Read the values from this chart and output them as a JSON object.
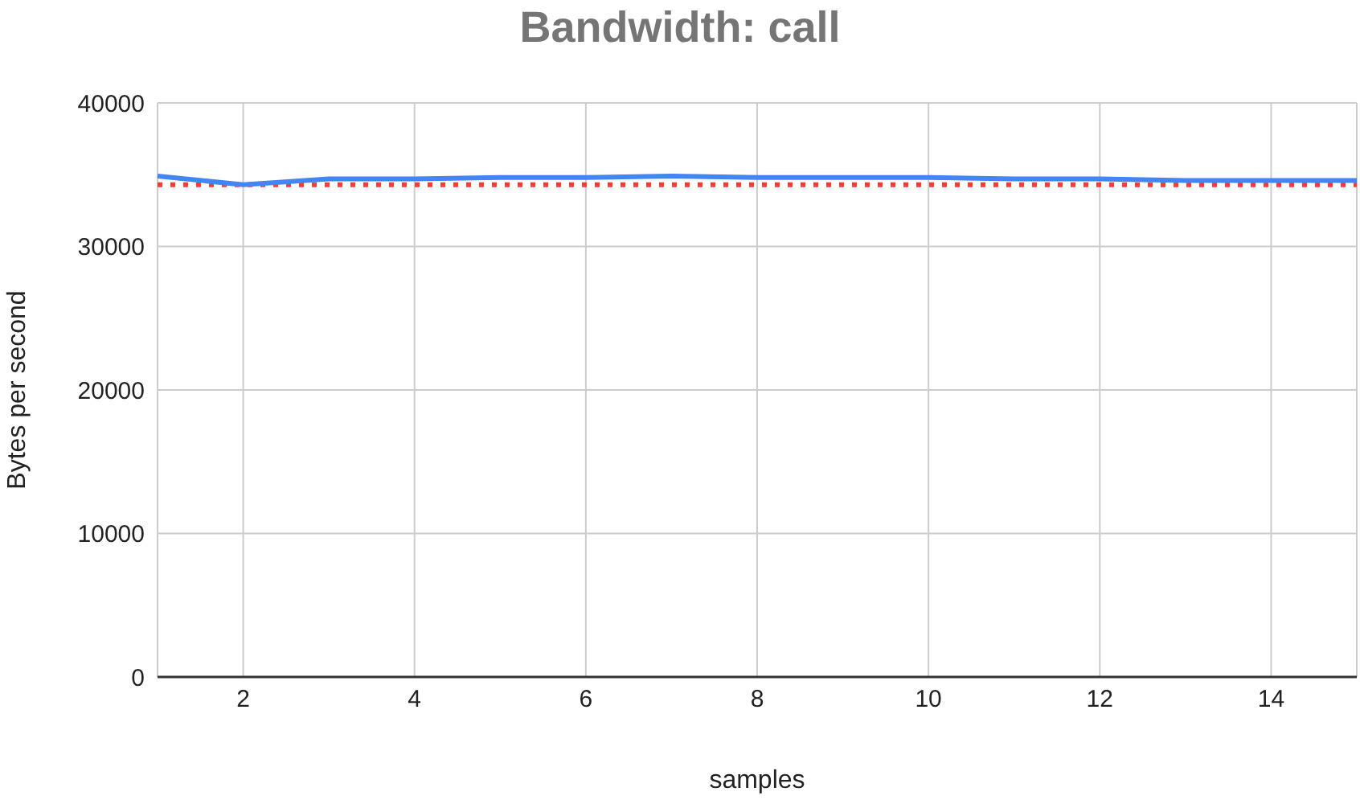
{
  "chart_data": {
    "type": "line",
    "title": "Bandwidth: call",
    "xlabel": "samples",
    "ylabel": "Bytes per second",
    "x": [
      1,
      2,
      3,
      4,
      5,
      6,
      7,
      8,
      9,
      10,
      11,
      12,
      13,
      14,
      15
    ],
    "series": [
      {
        "color": "#4285f4",
        "values": [
          34900,
          34300,
          34700,
          34700,
          34800,
          34800,
          34900,
          34800,
          34800,
          34800,
          34700,
          34700,
          34600,
          34600,
          34600
        ]
      }
    ],
    "xlim": [
      1,
      15
    ],
    "xticks": [
      2,
      4,
      6,
      8,
      10,
      12,
      14
    ],
    "ylim": [
      0,
      40000
    ],
    "yticks": [
      0,
      10000,
      20000,
      30000,
      40000
    ],
    "ref_lines": [
      {
        "axis": "y",
        "value": 34300,
        "color": "#ff3b30",
        "line_style": "dotted"
      }
    ],
    "grid": true,
    "legend": false,
    "marker": "none",
    "line_style": "solid"
  }
}
